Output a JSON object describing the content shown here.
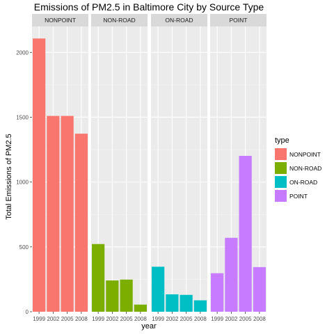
{
  "chart_data": {
    "type": "bar",
    "title": "Emissions of PM2.5 in Baltimore City by Source Type",
    "xlabel": "year",
    "ylabel": "Total Emissions of PM2.5",
    "ylim": [
      0,
      2200
    ],
    "yticks": [
      0,
      500,
      1000,
      1500,
      2000
    ],
    "categories": [
      "1999",
      "2002",
      "2005",
      "2008"
    ],
    "facets": [
      {
        "label": "NONPOINT",
        "values": [
          2107,
          1510,
          1510,
          1373
        ]
      },
      {
        "label": "NON-ROAD",
        "values": [
          522,
          241,
          248,
          55
        ]
      },
      {
        "label": "ON-ROAD",
        "values": [
          347,
          134,
          130,
          88
        ]
      },
      {
        "label": "POINT",
        "values": [
          297,
          570,
          1202,
          344
        ]
      }
    ],
    "legend": {
      "title": "type",
      "position": "right",
      "items": [
        {
          "label": "NONPOINT",
          "color": "#F8766D"
        },
        {
          "label": "NON-ROAD",
          "color": "#7CAE00"
        },
        {
          "label": "ON-ROAD",
          "color": "#00BFC4"
        },
        {
          "label": "POINT",
          "color": "#C77CFF"
        }
      ]
    },
    "grid": true,
    "panel_background": "#EBEBEB",
    "strip_background": "#D9D9D9"
  }
}
